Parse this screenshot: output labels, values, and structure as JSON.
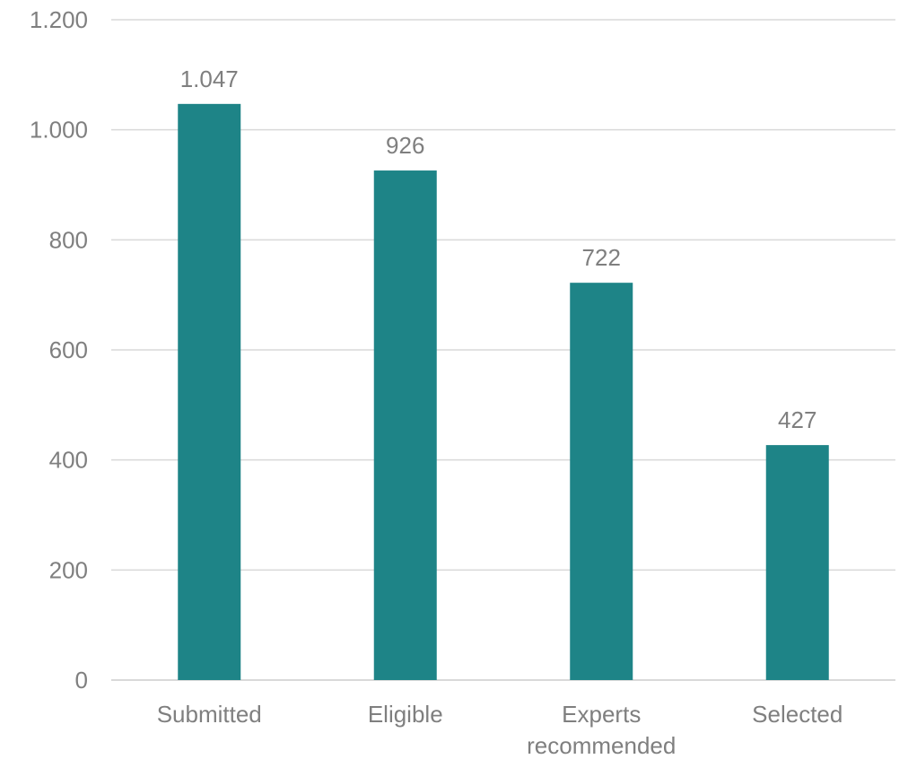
{
  "chart_data": {
    "type": "bar",
    "title": "",
    "xlabel": "",
    "ylabel": "",
    "categories": [
      "Submitted",
      "Eligible",
      "Experts recommended",
      "Selected"
    ],
    "category_lines": [
      [
        "Submitted"
      ],
      [
        "Eligible"
      ],
      [
        "Experts",
        "recommended"
      ],
      [
        "Selected"
      ]
    ],
    "values": [
      1047,
      926,
      722,
      427
    ],
    "value_labels": [
      "1.047",
      "926",
      "722",
      "427"
    ],
    "ylim": [
      0,
      1200
    ],
    "yticks": [
      0,
      200,
      400,
      600,
      800,
      1000,
      1200
    ],
    "ytick_labels": [
      "0",
      "200",
      "400",
      "600",
      "800",
      "1.000",
      "1.200"
    ],
    "grid": true,
    "legend": "none",
    "bar_color": "#1e8487"
  }
}
